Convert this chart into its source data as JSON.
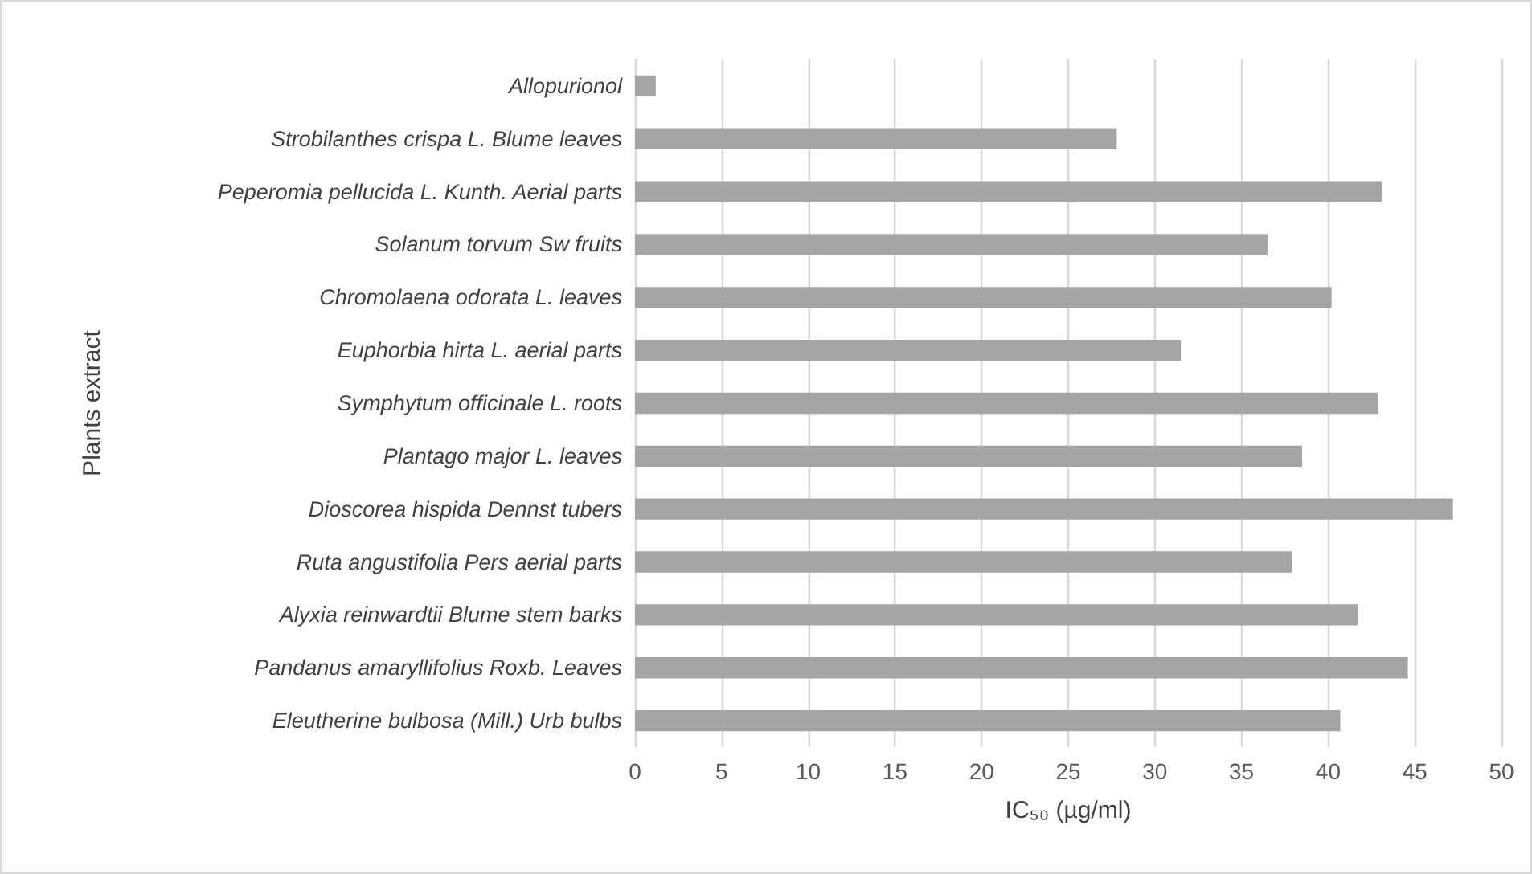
{
  "chart_data": {
    "type": "bar",
    "orientation": "horizontal",
    "xlabel": "IC₅₀ (µg/ml)",
    "ylabel": "Plants extract",
    "categories": [
      "Allopurionol",
      "Strobilanthes crispa L. Blume leaves",
      "Peperomia pellucida L. Kunth. Aerial parts",
      "Solanum torvum Sw fruits",
      "Chromolaena odorata L. leaves",
      "Euphorbia hirta L. aerial parts",
      "Symphytum officinale L. roots",
      "Plantago major L. leaves",
      "Dioscorea hispida Dennst tubers",
      "Ruta angustifolia Pers aerial parts",
      "Alyxia reinwardtii Blume stem barks",
      "Pandanus amaryllifolius Roxb. Leaves",
      "Eleutherine bulbosa (Mill.) Urb bulbs"
    ],
    "values": [
      1.2,
      27.8,
      43.1,
      36.5,
      40.2,
      31.5,
      42.9,
      38.5,
      47.2,
      37.9,
      41.7,
      44.6,
      40.7
    ],
    "color": "#a5a5a5",
    "xlim": [
      0,
      50
    ],
    "xticks": [
      0,
      5,
      10,
      15,
      20,
      25,
      30,
      35,
      40,
      45,
      50
    ],
    "grid": "x"
  }
}
